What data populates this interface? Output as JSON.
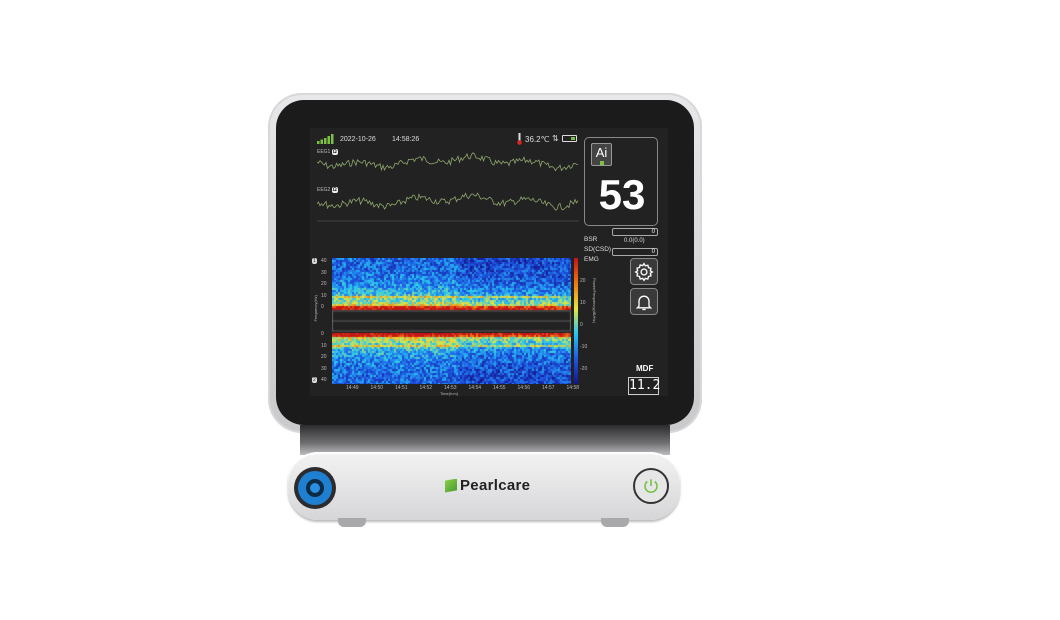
{
  "device": {
    "brand": "Pearlcare",
    "accent": "#6fbf3a",
    "port_color": "#1f7fd0"
  },
  "status": {
    "signal_icon": "signal-bars-icon",
    "date": "2022-10-26",
    "time": "14:58:26",
    "temp_icon": "thermometer-icon",
    "temperature": "36.2℃",
    "transfer_icon": "up-down-arrows-icon",
    "battery_icon": "battery-icon"
  },
  "eeg": [
    {
      "label": "EEG1",
      "badge": "Ω"
    },
    {
      "label": "EEG2",
      "badge": "Ω"
    }
  ],
  "index": {
    "ai_label": "Ai",
    "value": "53"
  },
  "params": [
    {
      "label": "BSR",
      "value": "0"
    },
    {
      "label": "SD(CSD)",
      "value": "0.0(0.0)"
    },
    {
      "label": "EMG",
      "value": "0"
    }
  ],
  "buttons": {
    "settings_icon": "gear-icon",
    "alarm_icon": "bell-icon"
  },
  "mdf": {
    "label": "MDF",
    "value": "11.2"
  },
  "spectrogram": {
    "y_ticks_top": [
      "40",
      "30",
      "20",
      "10",
      "0"
    ],
    "y_ticks_bottom": [
      "0",
      "10",
      "20",
      "30",
      "40"
    ],
    "y_label": "Frequency(Hz)",
    "x_ticks": [
      "14:49",
      "14:50",
      "14:51",
      "14:52",
      "14:53",
      "14:54",
      "14:55",
      "14:56",
      "14:57",
      "14:58"
    ],
    "x_label": "Time(h:m)",
    "colorbar_ticks": [
      "20",
      "10",
      "0",
      "-10",
      "-20"
    ],
    "colorbar_label": "Power/Frequency(dB/Hz)"
  }
}
